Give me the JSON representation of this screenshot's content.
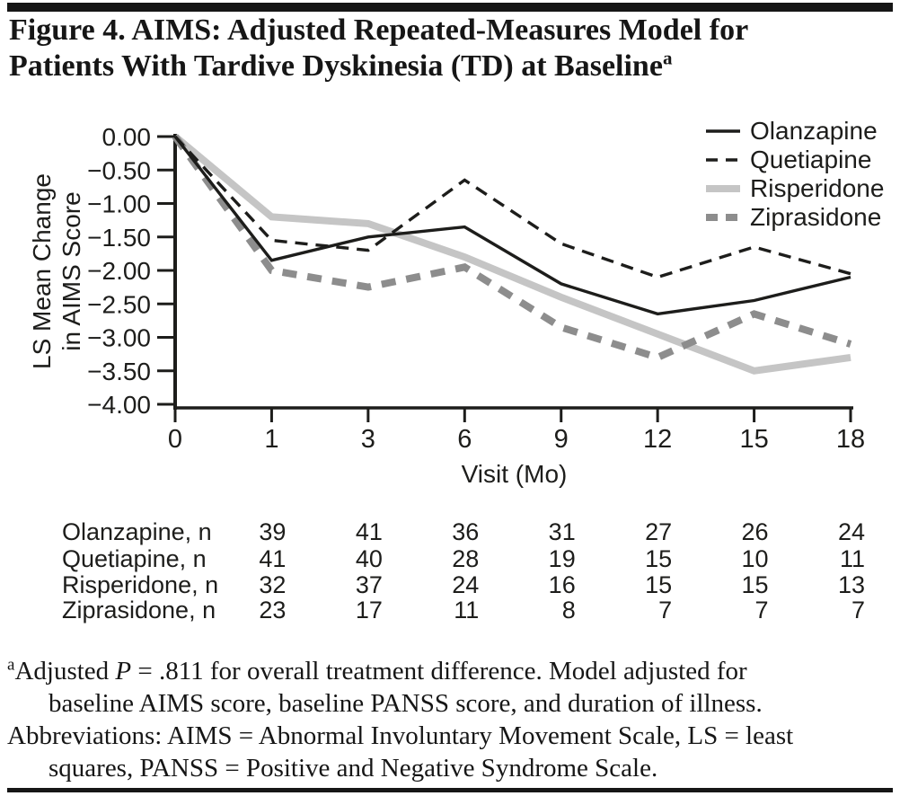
{
  "title": {
    "line1": "Figure 4. AIMS: Adjusted Repeated-Measures Model for",
    "line2": "Patients With Tardive Dyskinesia (TD) at Baseline",
    "superscript": "a"
  },
  "chart_data": {
    "type": "line",
    "title": "",
    "xlabel": "Visit (Mo)",
    "ylabel_lines": [
      "LS Mean Change",
      "in AIMS Score"
    ],
    "x_tick_labels": [
      "0",
      "1",
      "3",
      "6",
      "9",
      "12",
      "15",
      "18"
    ],
    "x_values_months": [
      0,
      1,
      3,
      6,
      9,
      12,
      15,
      18
    ],
    "ylim": [
      -4.0,
      0.0
    ],
    "ytick_step": 0.5,
    "grid": false,
    "legend_position": "top-right",
    "series": [
      {
        "name": "Olanzapine",
        "line": "solid",
        "thickness": "thin",
        "color": "#1d1d1b",
        "values": [
          0.0,
          -1.85,
          -1.5,
          -1.35,
          -2.2,
          -2.65,
          -2.45,
          -2.1
        ]
      },
      {
        "name": "Quetiapine",
        "line": "dashed",
        "thickness": "thin",
        "color": "#1d1d1b",
        "values": [
          0.0,
          -1.55,
          -1.7,
          -0.65,
          -1.6,
          -2.1,
          -1.65,
          -2.05
        ]
      },
      {
        "name": "Risperidone",
        "line": "solid",
        "thickness": "thick",
        "color": "#c5c5c5",
        "values": [
          0.0,
          -1.2,
          -1.3,
          -1.8,
          -2.4,
          -2.95,
          -3.5,
          -3.3
        ]
      },
      {
        "name": "Ziprasidone",
        "line": "dashed",
        "thickness": "thick",
        "color": "#8d8d8d",
        "values": [
          0.0,
          -2.0,
          -2.25,
          -1.95,
          -2.85,
          -3.3,
          -2.65,
          -3.1
        ]
      }
    ]
  },
  "n_table": {
    "rows": [
      {
        "label": "Olanzapine, n",
        "values": [
          "39",
          "41",
          "36",
          "31",
          "27",
          "26",
          "24"
        ]
      },
      {
        "label": "Quetiapine, n",
        "values": [
          "41",
          "40",
          "28",
          "19",
          "15",
          "10",
          "11"
        ]
      },
      {
        "label": "Risperidone, n",
        "values": [
          "32",
          "37",
          "24",
          "16",
          "15",
          "15",
          "13"
        ]
      },
      {
        "label": "Ziprasidone, n",
        "values": [
          "23",
          "17",
          "11",
          "8",
          "7",
          "7",
          "7"
        ]
      }
    ]
  },
  "footnotes": {
    "marker": "a",
    "line1_pre_italic": "Adjusted ",
    "line1_italic": "P",
    "line1_post_italic": " = .811 for overall treatment difference. Model adjusted for",
    "line2": "baseline AIMS score, baseline PANSS score, and duration of illness.",
    "line3": "Abbreviations: AIMS = Abnormal Involuntary Movement Scale, LS = least",
    "line4": "squares, PANSS = Positive and Negative Syndrome Scale."
  },
  "colors": {
    "ink": "#1d1d1b",
    "title_ink": "#161616",
    "risperidone_gray": "#c5c5c5",
    "ziprasidone_gray": "#8d8d8d",
    "background": "#ffffff"
  }
}
